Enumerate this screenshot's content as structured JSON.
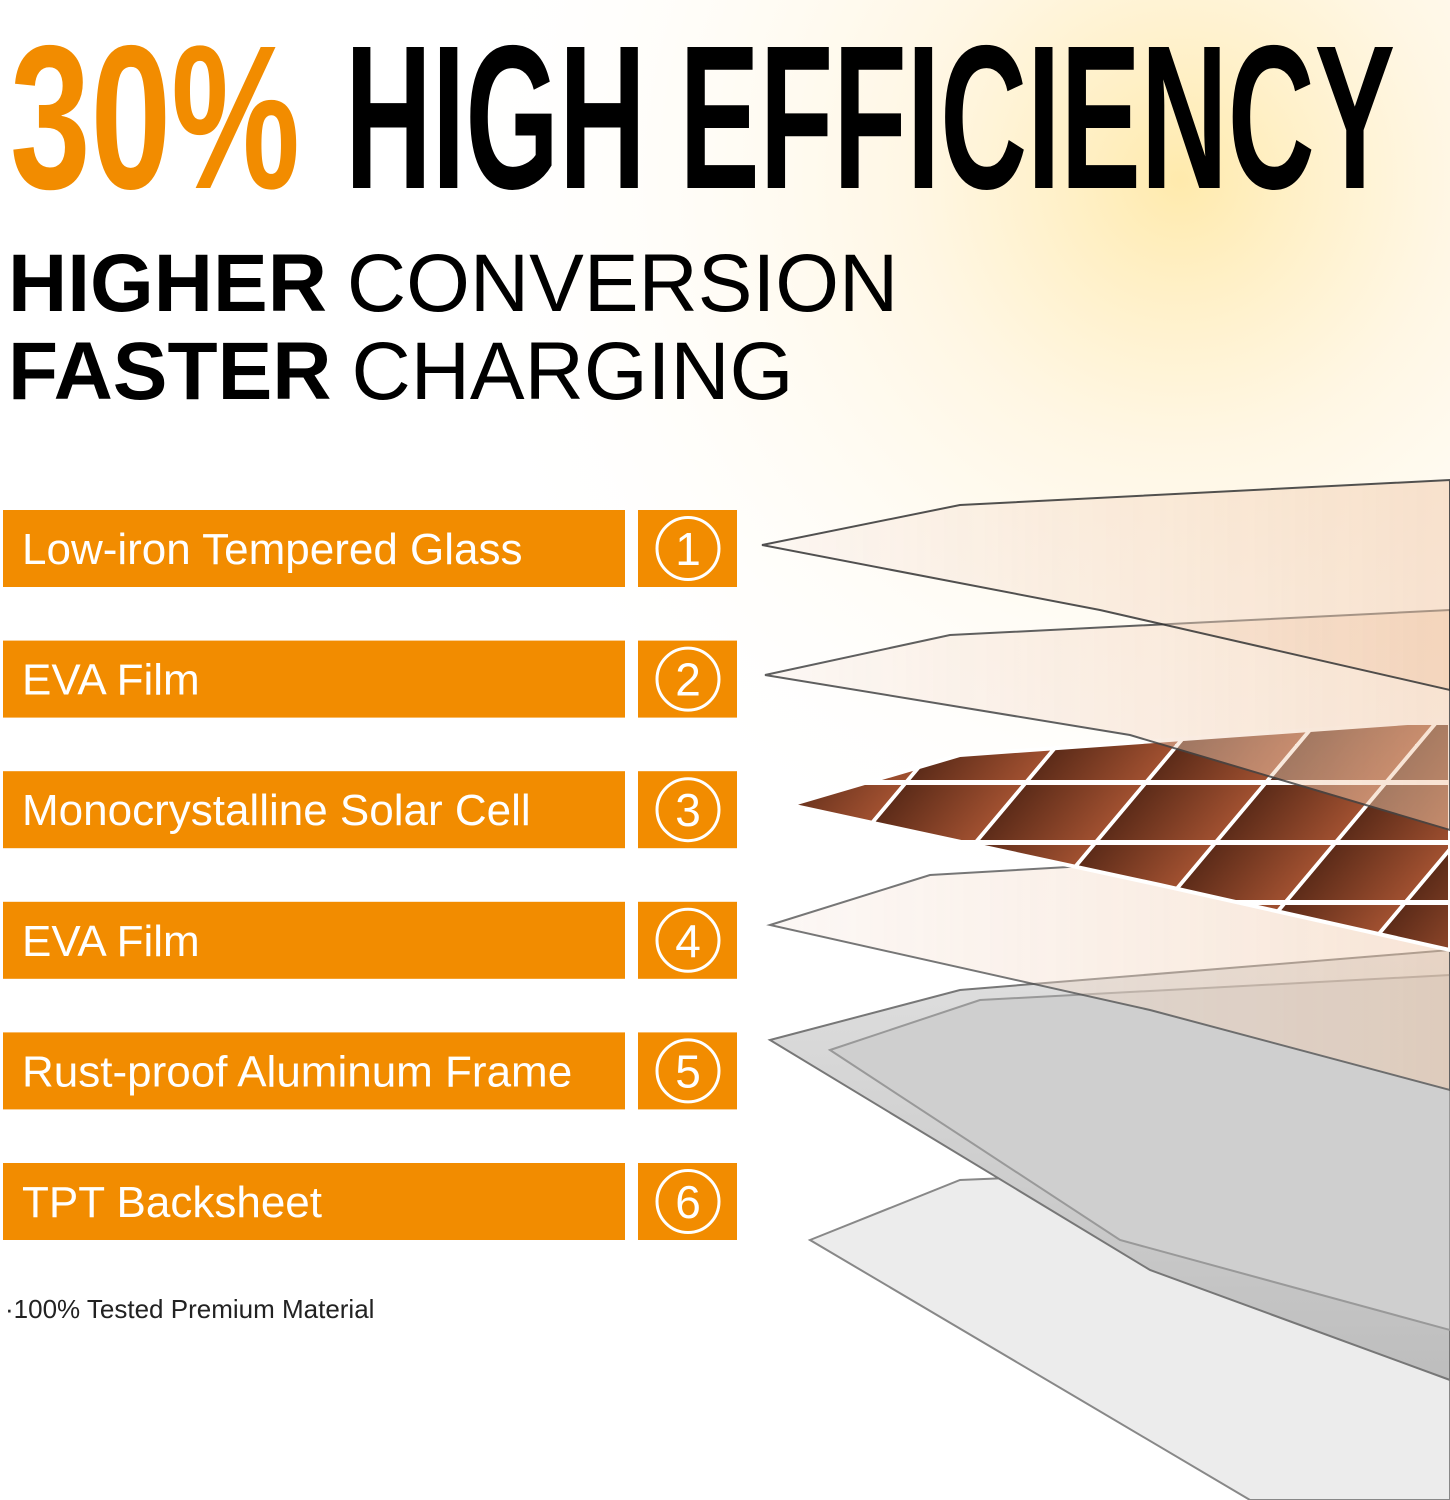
{
  "headline": {
    "highlight": "30%",
    "text": "HIGH EFFICIENCY"
  },
  "subtitle": [
    {
      "bold": "HIGHER",
      "text": "CONVERSION"
    },
    {
      "bold": "FASTER",
      "text": "CHARGING"
    }
  ],
  "layers": [
    {
      "label": "Low-iron Tempered Glass",
      "number": "1"
    },
    {
      "label": "EVA Film",
      "number": "2"
    },
    {
      "label": "Monocrystalline Solar Cell",
      "number": "3"
    },
    {
      "label": "EVA Film",
      "number": "4"
    },
    {
      "label": "Rust-proof Aluminum Frame",
      "number": "5"
    },
    {
      "label": "TPT Backsheet",
      "number": "6"
    }
  ],
  "footnote": "·100% Tested Premium Material"
}
